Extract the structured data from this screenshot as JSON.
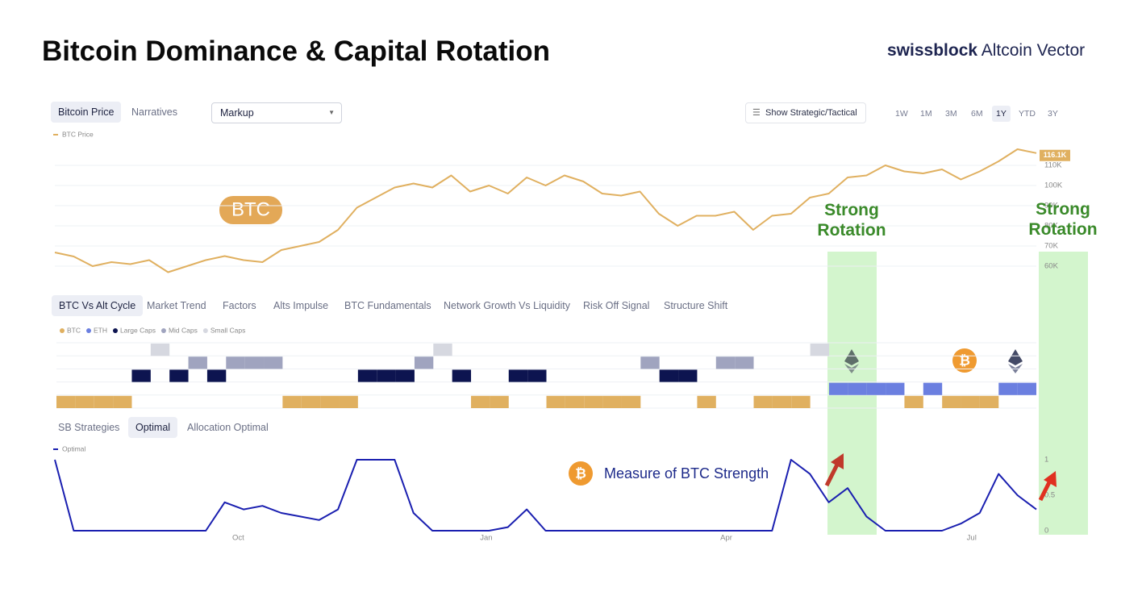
{
  "header": {
    "title": "Bitcoin Dominance & Capital Rotation",
    "brand": "swissblock",
    "product": "Altcoin Vector"
  },
  "price_panel": {
    "tabs": [
      "Bitcoin Price",
      "Narratives"
    ],
    "dropdown": "Markup",
    "toggle": "Show Strategic/Tactical",
    "ranges": [
      "1W",
      "1M",
      "3M",
      "6M",
      "1Y",
      "YTD",
      "3Y"
    ]
  },
  "signal_panel": {
    "tabs": [
      "BTC Vs Alt Cycle",
      "Market Trend",
      "Factors",
      "Alts Impulse",
      "BTC Fundamentals",
      "Network Growth Vs Liquidity",
      "Risk Off Signal",
      "Structure Shift"
    ]
  },
  "strategy_panel": {
    "tabs": [
      "SB Strategies",
      "Optimal",
      "Allocation Optimal"
    ]
  },
  "annotations": {
    "btc_label": "BTC",
    "rotation_1": "Strong Rotation",
    "rotation_2": "Strong Rotation",
    "measure": "Measure of BTC Strength"
  },
  "chart_data": [
    {
      "type": "line",
      "grid": true,
      "x": [
        0,
        7,
        14,
        21,
        28,
        35,
        42,
        49,
        56,
        63,
        70,
        77,
        84,
        91,
        98,
        105,
        112,
        119,
        126,
        133,
        140,
        147,
        154,
        161,
        168,
        175,
        182,
        189,
        196,
        203,
        210,
        217,
        224,
        231,
        238,
        245,
        252,
        259,
        266,
        273,
        280,
        287,
        294,
        301,
        308,
        315,
        322,
        329,
        336,
        343,
        350,
        357,
        364
      ],
      "xlim": [
        0,
        364
      ],
      "ylim": [
        54000,
        120000
      ],
      "yticks": [
        {
          "value": 60000,
          "label": "60K"
        },
        {
          "value": 70000,
          "label": "70K"
        },
        {
          "value": 80000,
          "label": "80K"
        },
        {
          "value": 90000,
          "label": "90K"
        },
        {
          "value": 100000,
          "label": "100K"
        },
        {
          "value": 110000,
          "label": "110K"
        }
      ],
      "series": [
        {
          "name": "BTC Price",
          "color": "#e0b060",
          "values": [
            66800,
            64800,
            60000,
            62000,
            61000,
            63000,
            57000,
            60000,
            63000,
            65000,
            63000,
            62000,
            68000,
            70000,
            72000,
            78000,
            89000,
            94000,
            99000,
            101000,
            99000,
            105000,
            97000,
            100000,
            96000,
            104000,
            100000,
            105000,
            102000,
            96000,
            95000,
            97000,
            86000,
            80000,
            85000,
            85000,
            87000,
            78000,
            85000,
            86000,
            94000,
            96000,
            104000,
            105000,
            110000,
            107000,
            106000,
            108000,
            103000,
            107000,
            112000,
            118000,
            116100
          ],
          "value_labels": [
            null,
            null,
            null,
            null,
            null,
            null,
            null,
            null,
            null,
            null,
            null,
            null,
            null,
            null,
            null,
            null,
            null,
            null,
            null,
            null,
            null,
            null,
            null,
            null,
            null,
            null,
            null,
            null,
            null,
            null,
            null,
            null,
            null,
            null,
            null,
            null,
            null,
            null,
            null,
            null,
            null,
            null,
            null,
            null,
            null,
            null,
            null,
            null,
            null,
            null,
            null,
            null,
            "116.1K"
          ]
        }
      ]
    },
    {
      "type": "regime",
      "x": [
        0,
        7,
        14,
        21,
        28,
        35,
        42,
        49,
        56,
        63,
        70,
        77,
        84,
        91,
        98,
        105,
        112,
        119,
        126,
        133,
        140,
        147,
        154,
        161,
        168,
        175,
        182,
        189,
        196,
        203,
        210,
        217,
        224,
        231,
        238,
        245,
        252,
        259,
        266,
        273,
        280,
        287,
        294,
        301,
        308,
        315,
        322,
        329,
        336,
        343,
        350,
        357,
        364
      ],
      "xlim": [
        0,
        364
      ],
      "categories": [
        "BTC",
        "ETH",
        "Large Caps",
        "Mid Caps",
        "Small Caps"
      ],
      "colors": [
        "#e0b060",
        "#6b7fe0",
        "#0d1450",
        "#a0a4bf",
        "#d6d8e0"
      ],
      "values": [
        0,
        0,
        0,
        0,
        2,
        4,
        2,
        3,
        2,
        3,
        3,
        3,
        0,
        0,
        0,
        0,
        2,
        2,
        2,
        3,
        4,
        2,
        0,
        0,
        2,
        2,
        0,
        0,
        0,
        0,
        0,
        3,
        2,
        2,
        0,
        3,
        3,
        0,
        0,
        0,
        4,
        1,
        1,
        1,
        1,
        0,
        1,
        0,
        0,
        0,
        1,
        1,
        1
      ]
    },
    {
      "type": "line",
      "grid": false,
      "x": [
        0,
        7,
        14,
        21,
        28,
        35,
        42,
        49,
        56,
        63,
        70,
        77,
        84,
        91,
        98,
        105,
        112,
        119,
        126,
        133,
        140,
        147,
        154,
        161,
        168,
        175,
        182,
        189,
        196,
        203,
        210,
        217,
        224,
        231,
        238,
        245,
        252,
        259,
        266,
        273,
        280,
        287,
        294,
        301,
        308,
        315,
        322,
        329,
        336,
        343,
        350,
        357,
        364
      ],
      "xlim": [
        0,
        364
      ],
      "ylim": [
        0,
        1
      ],
      "yticks": [
        0,
        0.5,
        1
      ],
      "xticks": [
        {
          "value": 68,
          "label": "Oct"
        },
        {
          "value": 160,
          "label": "Jan"
        },
        {
          "value": 249,
          "label": "Apr"
        },
        {
          "value": 340,
          "label": "Jul"
        }
      ],
      "series": [
        {
          "name": "Optimal",
          "color": "#1a1fb0",
          "values": [
            1,
            0,
            0,
            0,
            0,
            0,
            0,
            0,
            0,
            0.4,
            0.3,
            0.35,
            0.25,
            0.2,
            0.15,
            0.3,
            1,
            1,
            1,
            0.25,
            0,
            0,
            0,
            0,
            0.05,
            0.3,
            0,
            0,
            0,
            0,
            0,
            0,
            0,
            0,
            0,
            0,
            0,
            0,
            0,
            1,
            0.8,
            0.4,
            0.6,
            0.2,
            0,
            0,
            0,
            0,
            0.1,
            0.25,
            0.8,
            0.5,
            0.3
          ]
        }
      ]
    }
  ]
}
